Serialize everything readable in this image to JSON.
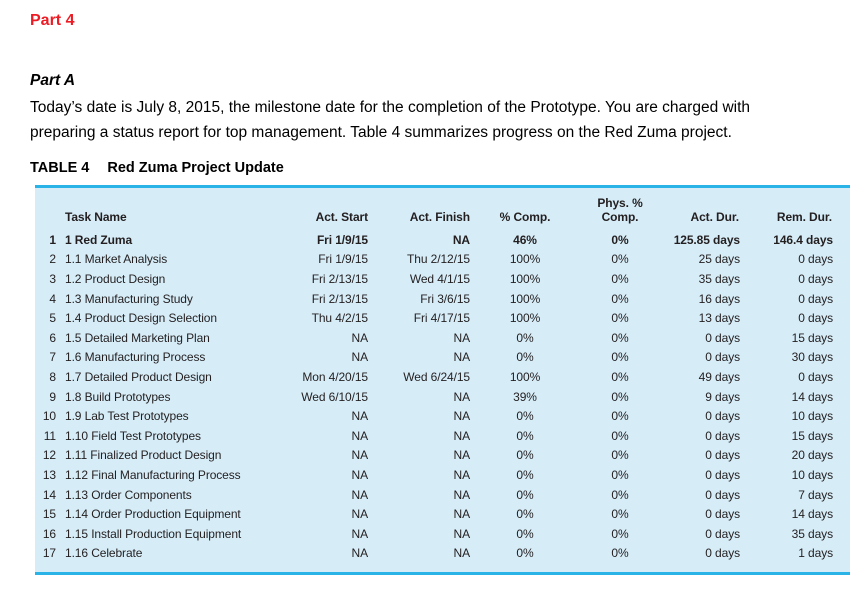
{
  "page": {
    "part_heading": "Part 4",
    "section_heading": "Part A",
    "intro_text": "Today’s date is July 8, 2015, the milestone date for the completion of the Prototype. You are charged with preparing a status report for top management. Table 4 summarizes progress on the Red Zuma project."
  },
  "table": {
    "label": "TABLE 4",
    "title": "Red Zuma Project Update",
    "header": {
      "task_name": "Task Name",
      "act_start": "Act. Start",
      "act_finish": "Act. Finish",
      "pct_comp": "% Comp.",
      "phys_pct_line1": "Phys. %",
      "phys_pct_line2": "Comp.",
      "act_dur": "Act. Dur.",
      "rem_dur": "Rem. Dur."
    },
    "rows": [
      {
        "num": "1",
        "name": "1 Red Zuma",
        "act_start": "Fri 1/9/15",
        "act_finish": "NA",
        "pct_comp": "46%",
        "phys_comp": "0%",
        "act_dur": "125.85 days",
        "rem_dur": "146.4 days",
        "bold": true
      },
      {
        "num": "2",
        "name": "1.1 Market Analysis",
        "act_start": "Fri 1/9/15",
        "act_finish": "Thu 2/12/15",
        "pct_comp": "100%",
        "phys_comp": "0%",
        "act_dur": "25 days",
        "rem_dur": "0 days",
        "bold": false
      },
      {
        "num": "3",
        "name": "1.2 Product Design",
        "act_start": "Fri 2/13/15",
        "act_finish": "Wed 4/1/15",
        "pct_comp": "100%",
        "phys_comp": "0%",
        "act_dur": "35 days",
        "rem_dur": "0 days",
        "bold": false
      },
      {
        "num": "4",
        "name": "1.3 Manufacturing Study",
        "act_start": "Fri 2/13/15",
        "act_finish": "Fri 3/6/15",
        "pct_comp": "100%",
        "phys_comp": "0%",
        "act_dur": "16 days",
        "rem_dur": "0 days",
        "bold": false
      },
      {
        "num": "5",
        "name": "1.4 Product Design Selection",
        "act_start": "Thu 4/2/15",
        "act_finish": "Fri 4/17/15",
        "pct_comp": "100%",
        "phys_comp": "0%",
        "act_dur": "13 days",
        "rem_dur": "0 days",
        "bold": false
      },
      {
        "num": "6",
        "name": "1.5 Detailed Marketing Plan",
        "act_start": "NA",
        "act_finish": "NA",
        "pct_comp": "0%",
        "phys_comp": "0%",
        "act_dur": "0 days",
        "rem_dur": "15 days",
        "bold": false
      },
      {
        "num": "7",
        "name": "1.6 Manufacturing Process",
        "act_start": "NA",
        "act_finish": "NA",
        "pct_comp": "0%",
        "phys_comp": "0%",
        "act_dur": "0 days",
        "rem_dur": "30 days",
        "bold": false
      },
      {
        "num": "8",
        "name": "1.7 Detailed Product Design",
        "act_start": "Mon 4/20/15",
        "act_finish": "Wed 6/24/15",
        "pct_comp": "100%",
        "phys_comp": "0%",
        "act_dur": "49 days",
        "rem_dur": "0 days",
        "bold": false
      },
      {
        "num": "9",
        "name": "1.8 Build Prototypes",
        "act_start": "Wed 6/10/15",
        "act_finish": "NA",
        "pct_comp": "39%",
        "phys_comp": "0%",
        "act_dur": "9 days",
        "rem_dur": "14 days",
        "bold": false
      },
      {
        "num": "10",
        "name": "1.9 Lab Test Prototypes",
        "act_start": "NA",
        "act_finish": "NA",
        "pct_comp": "0%",
        "phys_comp": "0%",
        "act_dur": "0 days",
        "rem_dur": "10 days",
        "bold": false
      },
      {
        "num": "11",
        "name": "1.10 Field Test Prototypes",
        "act_start": "NA",
        "act_finish": "NA",
        "pct_comp": "0%",
        "phys_comp": "0%",
        "act_dur": "0 days",
        "rem_dur": "15 days",
        "bold": false
      },
      {
        "num": "12",
        "name": "1.11 Finalized Product Design",
        "act_start": "NA",
        "act_finish": "NA",
        "pct_comp": "0%",
        "phys_comp": "0%",
        "act_dur": "0 days",
        "rem_dur": "20 days",
        "bold": false
      },
      {
        "num": "13",
        "name": "1.12 Final Manufacturing Process",
        "act_start": "NA",
        "act_finish": "NA",
        "pct_comp": "0%",
        "phys_comp": "0%",
        "act_dur": "0 days",
        "rem_dur": "10 days",
        "bold": false
      },
      {
        "num": "14",
        "name": "1.13 Order Components",
        "act_start": "NA",
        "act_finish": "NA",
        "pct_comp": "0%",
        "phys_comp": "0%",
        "act_dur": "0 days",
        "rem_dur": "7 days",
        "bold": false
      },
      {
        "num": "15",
        "name": "1.14 Order Production Equipment",
        "act_start": "NA",
        "act_finish": "NA",
        "pct_comp": "0%",
        "phys_comp": "0%",
        "act_dur": "0 days",
        "rem_dur": "14 days",
        "bold": false
      },
      {
        "num": "16",
        "name": "1.15 Install Production Equipment",
        "act_start": "NA",
        "act_finish": "NA",
        "pct_comp": "0%",
        "phys_comp": "0%",
        "act_dur": "0 days",
        "rem_dur": "35 days",
        "bold": false
      },
      {
        "num": "17",
        "name": "1.16 Celebrate",
        "act_start": "NA",
        "act_finish": "NA",
        "pct_comp": "0%",
        "phys_comp": "0%",
        "act_dur": "0 days",
        "rem_dur": "1 days",
        "bold": false
      }
    ]
  },
  "colors": {
    "heading_red": "#ed1c24",
    "table_background": "#d6ecf7",
    "table_border": "#29b3e6",
    "text": "#231f20"
  }
}
